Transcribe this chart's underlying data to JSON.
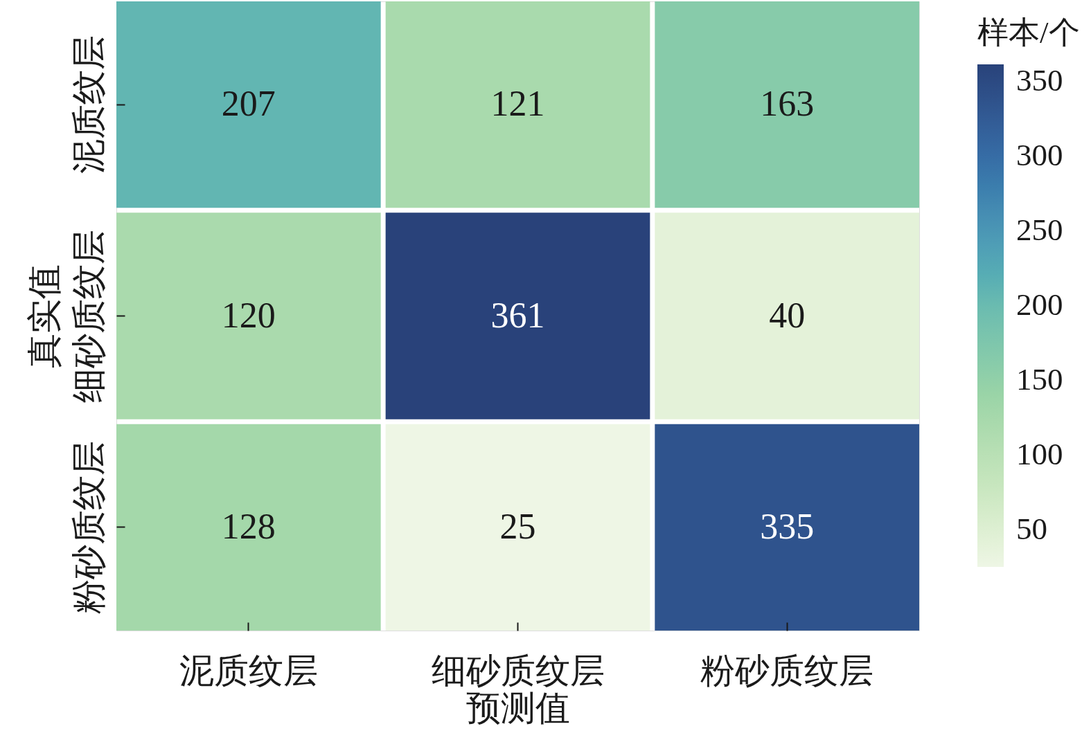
{
  "chart_data": {
    "type": "heatmap",
    "xlabel": "预测值",
    "ylabel": "真实值",
    "clabel": "样本/个",
    "categories": [
      "泥质纹层",
      "细砂质纹层",
      "粉砂质纹层"
    ],
    "y_categories": [
      "泥质纹层",
      "细砂质纹层",
      "粉砂质纹层"
    ],
    "cells": [
      [
        207,
        121,
        163
      ],
      [
        120,
        361,
        40
      ],
      [
        128,
        25,
        335
      ]
    ],
    "clim": [
      25,
      361
    ],
    "cticks": [
      50,
      100,
      150,
      200,
      250,
      300,
      350
    ],
    "data_labels": true
  }
}
